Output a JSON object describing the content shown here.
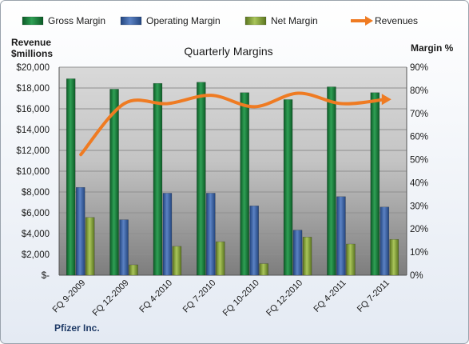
{
  "chart_data": {
    "type": "bar",
    "title": "Quarterly Margins",
    "left_axis_label_line1": "Revenue",
    "left_axis_label_line2": "$millions",
    "right_axis_label": "Margin %",
    "company": "Pfizer Inc.",
    "legend": {
      "placement": "top",
      "items": [
        {
          "name": "Gross Margin",
          "kind": "bar",
          "color": "#1a7a3a"
        },
        {
          "name": "Operating Margin",
          "kind": "bar",
          "color": "#3c63a6"
        },
        {
          "name": "Net Margin",
          "kind": "bar",
          "color": "#8aa83a"
        },
        {
          "name": "Revenues",
          "kind": "line",
          "color": "#ef7b22"
        }
      ]
    },
    "categories": [
      "FQ 9-2009",
      "FQ 12-2009",
      "FQ 4-2010",
      "FQ 7-2010",
      "FQ 10-2010",
      "FQ 12-2010",
      "FQ 4-2011",
      "FQ 7-2011"
    ],
    "left_axis": {
      "min": 0,
      "max": 20000,
      "step": 2000,
      "tick_labels": [
        "$-",
        "$2,000",
        "$4,000",
        "$6,000",
        "$8,000",
        "$10,000",
        "$12,000",
        "$14,000",
        "$16,000",
        "$18,000",
        "$20,000"
      ]
    },
    "right_axis": {
      "min": 0,
      "max": 90,
      "step": 10,
      "tick_labels": [
        "0%",
        "10%",
        "20%",
        "30%",
        "40%",
        "50%",
        "60%",
        "70%",
        "80%",
        "90%"
      ]
    },
    "series": [
      {
        "name": "Gross Margin",
        "axis": "right",
        "color": "#1a7a3a",
        "values": [
          85,
          80.5,
          83,
          83.5,
          79,
          76,
          81.5,
          79
        ]
      },
      {
        "name": "Operating Margin",
        "axis": "right",
        "color": "#3c63a6",
        "values": [
          38,
          24,
          35.5,
          35.5,
          30,
          19.5,
          34,
          29.5
        ]
      },
      {
        "name": "Net Margin",
        "axis": "right",
        "color": "#8aa83a",
        "values": [
          25,
          4.5,
          12.5,
          14.5,
          5,
          16.5,
          13.5,
          15.5
        ]
      },
      {
        "name": "Revenues",
        "axis": "left",
        "type": "line",
        "color": "#ef7b22",
        "values": [
          11600,
          16500,
          16500,
          17300,
          16200,
          17500,
          16500,
          16900
        ]
      }
    ],
    "grid": true
  }
}
